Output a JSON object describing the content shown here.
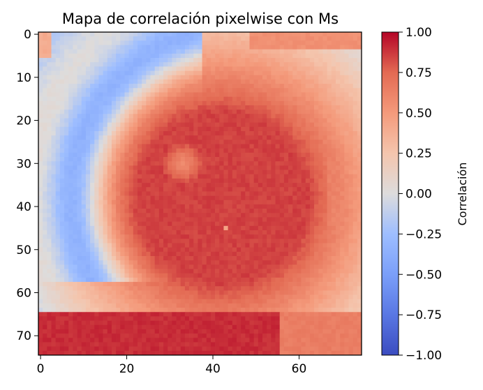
{
  "chart_data": {
    "type": "heatmap",
    "title": "Mapa de correlación pixelwise con Ms",
    "xlabel": "",
    "ylabel": "",
    "grid_size": [
      75,
      75
    ],
    "x_ticks": [
      0,
      20,
      40,
      60
    ],
    "y_ticks": [
      0,
      10,
      20,
      30,
      40,
      50,
      60,
      70
    ],
    "colormap": "coolwarm",
    "colorbar": {
      "label": "Correlación",
      "ticks": [
        "1.00",
        "0.75",
        "0.50",
        "0.25",
        "0.00",
        "−0.25",
        "−0.50",
        "−0.75",
        "−1.00"
      ],
      "range": [
        -1,
        1
      ]
    },
    "regions": [
      {
        "name": "corner-top-left",
        "value": 0.55
      },
      {
        "name": "arc-negative",
        "value": -0.35
      },
      {
        "name": "ring-center",
        "value": 0.85,
        "center": [
          42,
          38
        ]
      },
      {
        "name": "inner-spot",
        "value": 0.55,
        "center": [
          33,
          30
        ]
      },
      {
        "name": "bottom-band",
        "value": 0.9
      },
      {
        "name": "right-edge",
        "value": 0.55
      },
      {
        "name": "outlier-pixel",
        "value": 0.45,
        "x": 43,
        "y": 45
      }
    ],
    "colors": {
      "low": "#3b4cc0",
      "mid": "#dddddd",
      "high": "#b40426"
    }
  }
}
